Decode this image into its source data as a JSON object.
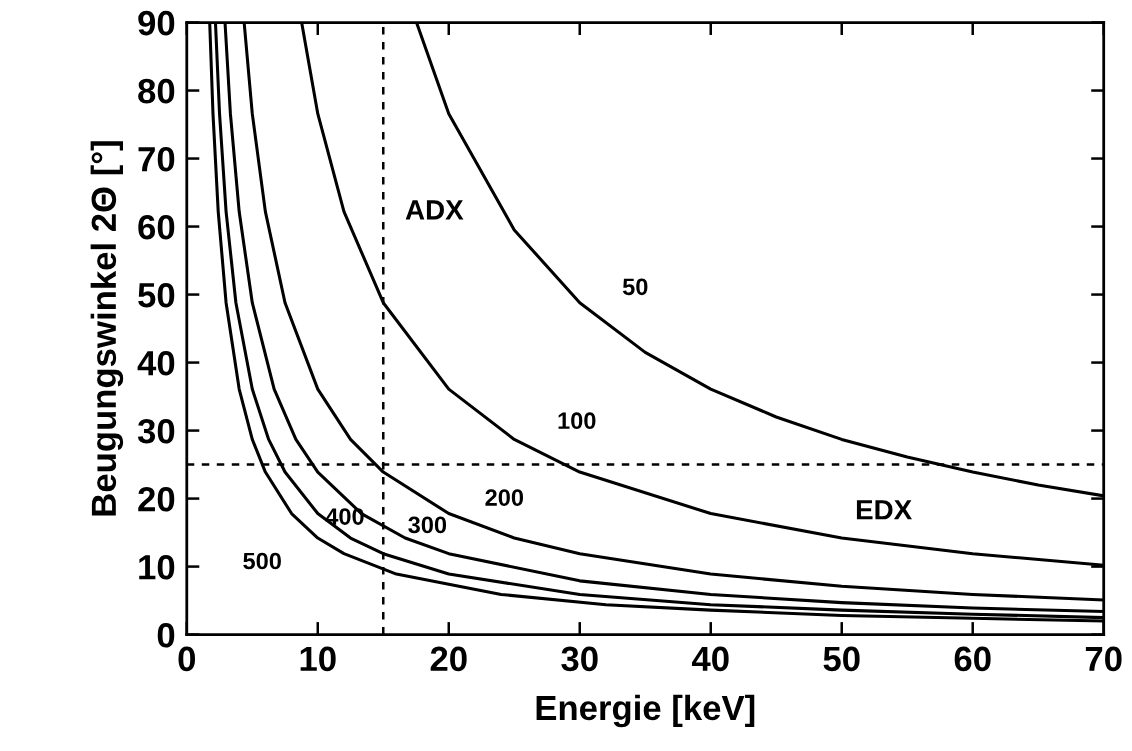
{
  "chart_data": {
    "type": "line",
    "xlabel": "Energie [keV]",
    "ylabel": "Beugungswinkel 2Θ [°]",
    "xlim": [
      0,
      70
    ],
    "ylim": [
      0,
      90
    ],
    "xticks": [
      0,
      10,
      20,
      30,
      40,
      50,
      60,
      70
    ],
    "yticks": [
      0,
      10,
      20,
      30,
      40,
      50,
      60,
      70,
      80,
      90
    ],
    "grid": false,
    "marker": "none",
    "line_style": "solid",
    "series": [
      {
        "color": "#000000",
        "x": [
          17.54,
          20,
          25,
          30,
          35,
          40,
          45,
          50,
          55,
          60,
          65,
          70
        ],
        "values": [
          90,
          76.6,
          59.5,
          48.8,
          41.5,
          36.1,
          32.0,
          28.7,
          26.1,
          23.9,
          22.0,
          20.4
        ]
      },
      {
        "color": "#000000",
        "x": [
          8.77,
          10,
          12,
          15,
          20,
          25,
          30,
          40,
          50,
          60,
          70
        ],
        "values": [
          90,
          76.6,
          62.2,
          48.8,
          36.1,
          28.7,
          23.9,
          17.8,
          14.2,
          11.9,
          10.2
        ]
      },
      {
        "color": "#000000",
        "x": [
          4.38,
          5,
          6,
          7.5,
          10,
          12.5,
          15,
          20,
          25,
          30,
          40,
          50,
          60,
          70
        ],
        "values": [
          90,
          76.6,
          62.2,
          48.8,
          36.1,
          28.7,
          23.9,
          17.8,
          14.2,
          11.9,
          8.9,
          7.1,
          5.9,
          5.1
        ]
      },
      {
        "color": "#000000",
        "x": [
          2.92,
          3.33,
          4,
          5,
          6.67,
          8.33,
          10,
          13.33,
          16.67,
          20,
          30,
          40,
          50,
          60,
          70
        ],
        "values": [
          90,
          76.6,
          62.2,
          48.8,
          36.1,
          28.7,
          23.9,
          17.8,
          14.2,
          11.9,
          7.9,
          5.9,
          4.7,
          3.9,
          3.4
        ]
      },
      {
        "color": "#000000",
        "x": [
          2.19,
          2.5,
          3,
          3.75,
          5,
          6.25,
          7.5,
          10,
          12.5,
          15,
          20,
          30,
          40,
          50,
          60,
          70
        ],
        "values": [
          90,
          76.6,
          62.2,
          48.8,
          36.1,
          28.7,
          23.9,
          17.8,
          14.2,
          11.9,
          8.9,
          5.9,
          4.4,
          3.6,
          3.0,
          2.5
        ]
      },
      {
        "color": "#000000",
        "x": [
          1.75,
          2,
          2.4,
          3,
          4,
          5,
          6,
          8,
          10,
          12,
          16,
          24,
          32,
          40,
          50,
          60,
          70
        ],
        "values": [
          90,
          76.6,
          62.2,
          48.8,
          36.1,
          28.7,
          23.9,
          17.8,
          14.2,
          11.9,
          8.9,
          5.9,
          4.4,
          3.6,
          2.8,
          2.4,
          2.0
        ]
      }
    ],
    "ref_lines": [
      {
        "axis": "x",
        "value": 15,
        "color": "#000000",
        "line_style": "dashed"
      },
      {
        "axis": "y",
        "value": 25,
        "color": "#000000",
        "line_style": "dashed"
      }
    ],
    "annotations": [
      {
        "text": "50",
        "x": 30,
        "y": 48.8
      },
      {
        "text": "100",
        "x": 25,
        "y": 28.7
      },
      {
        "text": "200",
        "x": 20,
        "y": 17.8
      },
      {
        "text": "300",
        "x": 16.67,
        "y": 14.2
      },
      {
        "text": "400",
        "x": 12.5,
        "y": 14.2
      },
      {
        "text": "500",
        "x": 10,
        "y": 14.2
      },
      "ADX",
      "EDX"
    ]
  }
}
